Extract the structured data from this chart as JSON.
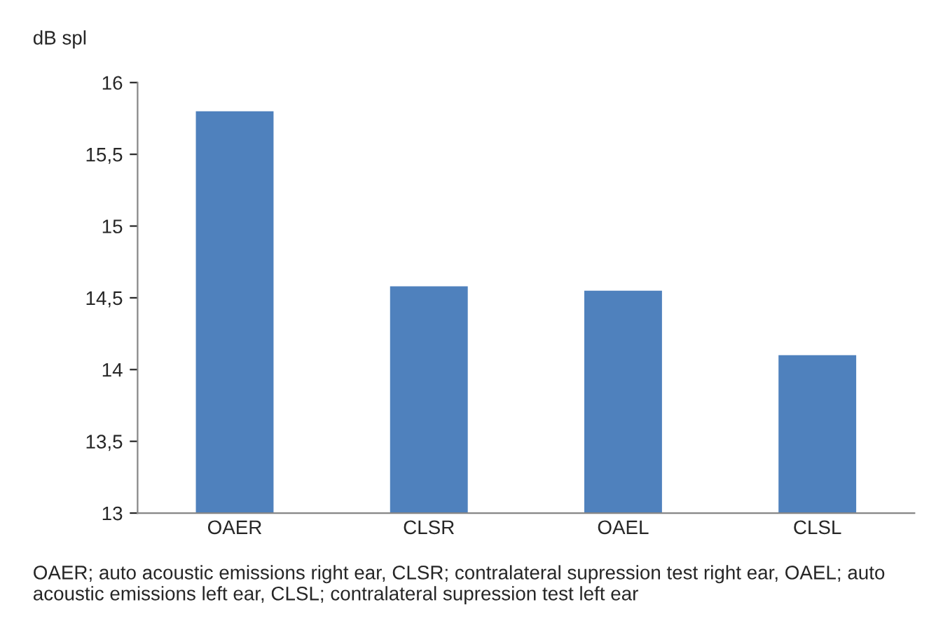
{
  "chart_data": {
    "type": "bar",
    "ylabel": "dB spl",
    "categories": [
      "OAER",
      "CLSR",
      "OAEL",
      "CLSL"
    ],
    "values": [
      15.8,
      14.58,
      14.55,
      14.1
    ],
    "color": "#4f81bd",
    "ylim": [
      13,
      16
    ],
    "yticks": [
      13,
      {
        "value": 13.5,
        "label": "13,5"
      },
      14,
      {
        "value": 14.5,
        "label": "14,5"
      },
      15,
      {
        "value": 15.5,
        "label": "15,5"
      },
      16
    ],
    "grid": false,
    "annotations": [
      "OAER; auto acoustic emissions right ear, CLSR; contralateral supression test right ear, OAEL; auto acoustic emissions left ear, CLSL; contralateral supression test left ear"
    ]
  }
}
